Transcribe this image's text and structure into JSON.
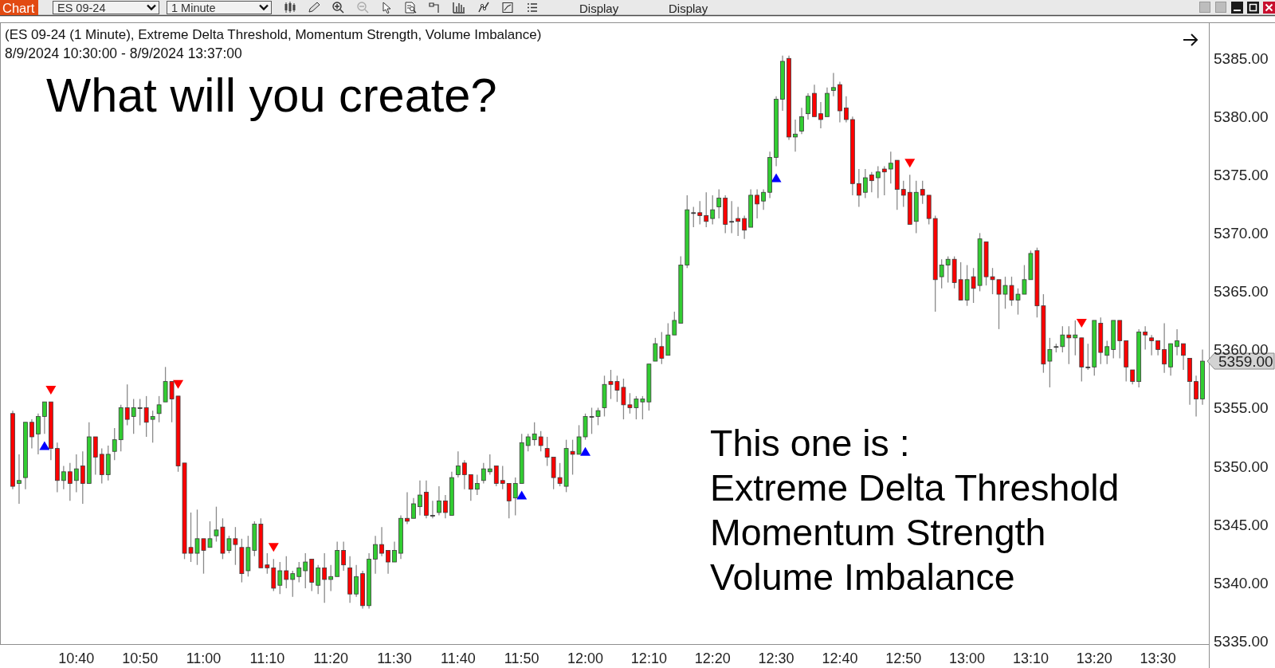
{
  "chart_data": {
    "type": "candlestick",
    "title": "(ES 09-24 (1 Minute), Extreme Delta Threshold, Momentum Strength, Volume Imbalance)",
    "subtitle": "8/9/2024 10:30:00 - 8/9/2024 13:37:00",
    "annotations": [
      "Chart",
      "ES 09-24",
      "1 Minute",
      "Display",
      "Display",
      "What will you create?",
      "This one is :",
      "Extreme Delta Threshold",
      "Momentum Strength",
      "Volume Imbalance",
      {
        "text": "5359.00",
        "x": "2024-08-09T13:37",
        "y": 5359
      }
    ],
    "x": [
      "2024-08-09T10:30",
      "2024-08-09T10:31",
      "2024-08-09T10:32",
      "2024-08-09T10:33",
      "2024-08-09T10:34",
      "2024-08-09T10:35",
      "2024-08-09T10:36",
      "2024-08-09T10:37",
      "2024-08-09T10:38",
      "2024-08-09T10:39",
      "2024-08-09T10:40",
      "2024-08-09T10:41",
      "2024-08-09T10:42",
      "2024-08-09T10:43",
      "2024-08-09T10:44",
      "2024-08-09T10:45",
      "2024-08-09T10:46",
      "2024-08-09T10:47",
      "2024-08-09T10:48",
      "2024-08-09T10:49",
      "2024-08-09T10:50",
      "2024-08-09T10:51",
      "2024-08-09T10:52",
      "2024-08-09T10:53",
      "2024-08-09T10:54",
      "2024-08-09T10:55",
      "2024-08-09T10:56",
      "2024-08-09T10:57",
      "2024-08-09T10:58",
      "2024-08-09T10:59",
      "2024-08-09T11:00",
      "2024-08-09T11:01",
      "2024-08-09T11:02",
      "2024-08-09T11:03",
      "2024-08-09T11:04",
      "2024-08-09T11:05",
      "2024-08-09T11:06",
      "2024-08-09T11:07",
      "2024-08-09T11:08",
      "2024-08-09T11:09",
      "2024-08-09T11:10",
      "2024-08-09T11:11",
      "2024-08-09T11:12",
      "2024-08-09T11:13",
      "2024-08-09T11:14",
      "2024-08-09T11:15",
      "2024-08-09T11:16",
      "2024-08-09T11:17",
      "2024-08-09T11:18",
      "2024-08-09T11:19",
      "2024-08-09T11:20",
      "2024-08-09T11:21",
      "2024-08-09T11:22",
      "2024-08-09T11:23",
      "2024-08-09T11:24",
      "2024-08-09T11:25",
      "2024-08-09T11:26",
      "2024-08-09T11:27",
      "2024-08-09T11:28",
      "2024-08-09T11:29",
      "2024-08-09T11:30",
      "2024-08-09T11:31",
      "2024-08-09T11:32",
      "2024-08-09T11:33",
      "2024-08-09T11:34",
      "2024-08-09T11:35",
      "2024-08-09T11:36",
      "2024-08-09T11:37",
      "2024-08-09T11:38",
      "2024-08-09T11:39",
      "2024-08-09T11:40",
      "2024-08-09T11:41",
      "2024-08-09T11:42",
      "2024-08-09T11:43",
      "2024-08-09T11:44",
      "2024-08-09T11:45",
      "2024-08-09T11:46",
      "2024-08-09T11:47",
      "2024-08-09T11:48",
      "2024-08-09T11:49",
      "2024-08-09T11:50",
      "2024-08-09T11:51",
      "2024-08-09T11:52",
      "2024-08-09T11:53",
      "2024-08-09T11:54",
      "2024-08-09T11:55",
      "2024-08-09T11:56",
      "2024-08-09T11:57",
      "2024-08-09T11:58",
      "2024-08-09T11:59",
      "2024-08-09T12:00",
      "2024-08-09T12:01",
      "2024-08-09T12:02",
      "2024-08-09T12:03",
      "2024-08-09T12:04",
      "2024-08-09T12:05",
      "2024-08-09T12:06",
      "2024-08-09T12:07",
      "2024-08-09T12:08",
      "2024-08-09T12:09",
      "2024-08-09T12:10",
      "2024-08-09T12:11",
      "2024-08-09T12:12",
      "2024-08-09T12:13",
      "2024-08-09T12:14",
      "2024-08-09T12:15",
      "2024-08-09T12:16",
      "2024-08-09T12:17",
      "2024-08-09T12:18",
      "2024-08-09T12:19",
      "2024-08-09T12:20",
      "2024-08-09T12:21",
      "2024-08-09T12:22",
      "2024-08-09T12:23",
      "2024-08-09T12:24",
      "2024-08-09T12:25",
      "2024-08-09T12:26",
      "2024-08-09T12:27",
      "2024-08-09T12:28",
      "2024-08-09T12:29",
      "2024-08-09T12:30",
      "2024-08-09T12:31",
      "2024-08-09T12:32",
      "2024-08-09T12:33",
      "2024-08-09T12:34",
      "2024-08-09T12:35",
      "2024-08-09T12:36",
      "2024-08-09T12:37",
      "2024-08-09T12:38",
      "2024-08-09T12:39",
      "2024-08-09T12:40",
      "2024-08-09T12:41",
      "2024-08-09T12:42",
      "2024-08-09T12:43",
      "2024-08-09T12:44",
      "2024-08-09T12:45",
      "2024-08-09T12:46",
      "2024-08-09T12:47",
      "2024-08-09T12:48",
      "2024-08-09T12:49",
      "2024-08-09T12:50",
      "2024-08-09T12:51",
      "2024-08-09T12:52",
      "2024-08-09T12:53",
      "2024-08-09T12:54",
      "2024-08-09T12:55",
      "2024-08-09T12:56",
      "2024-08-09T12:57",
      "2024-08-09T12:58",
      "2024-08-09T12:59",
      "2024-08-09T13:00",
      "2024-08-09T13:01",
      "2024-08-09T13:02",
      "2024-08-09T13:03",
      "2024-08-09T13:04",
      "2024-08-09T13:05",
      "2024-08-09T13:06",
      "2024-08-09T13:07",
      "2024-08-09T13:08",
      "2024-08-09T13:09",
      "2024-08-09T13:10",
      "2024-08-09T13:11",
      "2024-08-09T13:12",
      "2024-08-09T13:13",
      "2024-08-09T13:14",
      "2024-08-09T13:15",
      "2024-08-09T13:16",
      "2024-08-09T13:17",
      "2024-08-09T13:18",
      "2024-08-09T13:19",
      "2024-08-09T13:20",
      "2024-08-09T13:21",
      "2024-08-09T13:22",
      "2024-08-09T13:23",
      "2024-08-09T13:24",
      "2024-08-09T13:25",
      "2024-08-09T13:26",
      "2024-08-09T13:27",
      "2024-08-09T13:28",
      "2024-08-09T13:29",
      "2024-08-09T13:30",
      "2024-08-09T13:31",
      "2024-08-09T13:32",
      "2024-08-09T13:33",
      "2024-08-09T13:34",
      "2024-08-09T13:35",
      "2024-08-09T13:36",
      "2024-08-09T13:37"
    ],
    "ohlc": [
      [
        5354.5,
        5354.75,
        5348,
        5348.25
      ],
      [
        5348.5,
        5351,
        5346.75,
        5348.75
      ],
      [
        5349,
        5353.75,
        5348,
        5353.75
      ],
      [
        5353.75,
        5354,
        5351.5,
        5352.5
      ],
      [
        5352.75,
        5354.5,
        5351,
        5354.25
      ],
      [
        5354.25,
        5355.5,
        5352.75,
        5355.5
      ],
      [
        5355.5,
        5355.5,
        5350.5,
        5351.5
      ],
      [
        5351.5,
        5352,
        5347.75,
        5348.75
      ],
      [
        5348.75,
        5350,
        5348,
        5349.5
      ],
      [
        5349.5,
        5350.25,
        5347,
        5348.5
      ],
      [
        5348.75,
        5351,
        5347.75,
        5349.75
      ],
      [
        5350,
        5351.25,
        5346.75,
        5348.5
      ],
      [
        5348.5,
        5353.75,
        5348.5,
        5352.5
      ],
      [
        5352.5,
        5352.5,
        5349.25,
        5350.75
      ],
      [
        5351,
        5351.5,
        5348.5,
        5349.25
      ],
      [
        5349.25,
        5351.75,
        5348.75,
        5351
      ],
      [
        5351.25,
        5353.25,
        5350.5,
        5352.25
      ],
      [
        5352.25,
        5355.25,
        5351.25,
        5355
      ],
      [
        5355,
        5357,
        5353.5,
        5354
      ],
      [
        5354.25,
        5355.75,
        5352.75,
        5355
      ],
      [
        5355,
        5355.75,
        5353.5,
        5355
      ],
      [
        5355,
        5356,
        5352.5,
        5353.75
      ],
      [
        5354,
        5354.75,
        5352,
        5354.25
      ],
      [
        5354.5,
        5356,
        5353.75,
        5355.25
      ],
      [
        5355.5,
        5358.5,
        5355.5,
        5357.25
      ],
      [
        5357.25,
        5357.25,
        5353.75,
        5355.75
      ],
      [
        5356,
        5356,
        5349.5,
        5350
      ],
      [
        5350.25,
        5350.25,
        5342,
        5342.5
      ],
      [
        5343,
        5346,
        5341.75,
        5342.5
      ],
      [
        5342.5,
        5346.25,
        5341.5,
        5343.75
      ],
      [
        5343.75,
        5343.75,
        5340.75,
        5342.75
      ],
      [
        5343,
        5345.25,
        5343,
        5343.75
      ],
      [
        5344,
        5346.5,
        5343.5,
        5344.5
      ],
      [
        5344.75,
        5345.5,
        5342,
        5342.5
      ],
      [
        5342.75,
        5344,
        5342.5,
        5343.75
      ],
      [
        5343.75,
        5344.75,
        5341.5,
        5343.25
      ],
      [
        5343,
        5343.75,
        5340,
        5340.75
      ],
      [
        5341,
        5344,
        5340.5,
        5343
      ],
      [
        5342.75,
        5345.25,
        5342.25,
        5345
      ],
      [
        5345,
        5345.5,
        5341.25,
        5341.25
      ],
      [
        5341.5,
        5342.5,
        5340.75,
        5341.25
      ],
      [
        5341.25,
        5342,
        5339.25,
        5339.5
      ],
      [
        5339.75,
        5341.75,
        5339,
        5341
      ],
      [
        5341,
        5342.25,
        5339.5,
        5340.25
      ],
      [
        5340.25,
        5341,
        5338.75,
        5340.75
      ],
      [
        5340.5,
        5341.75,
        5340,
        5341.25
      ],
      [
        5341,
        5342.5,
        5339.5,
        5341.75
      ],
      [
        5342,
        5342,
        5339.25,
        5340
      ],
      [
        5339.75,
        5341.5,
        5339,
        5341.25
      ],
      [
        5341.25,
        5342.5,
        5338.25,
        5340.25
      ],
      [
        5340.25,
        5341.5,
        5339.25,
        5340.5
      ],
      [
        5340.5,
        5343.5,
        5340.5,
        5342.75
      ],
      [
        5342.75,
        5343.5,
        5341,
        5341.5
      ],
      [
        5341.25,
        5342.25,
        5338.25,
        5339
      ],
      [
        5339,
        5341.5,
        5338.75,
        5340.5
      ],
      [
        5340.75,
        5341,
        5337.75,
        5338
      ],
      [
        5338,
        5342.5,
        5337.75,
        5342
      ],
      [
        5342,
        5344,
        5340.75,
        5343.25
      ],
      [
        5343.25,
        5344.75,
        5342.25,
        5342.5
      ],
      [
        5342.75,
        5342.75,
        5340.75,
        5341.75
      ],
      [
        5341.75,
        5343.5,
        5341.75,
        5342.75
      ],
      [
        5342.5,
        5345.75,
        5342,
        5345.5
      ],
      [
        5345.5,
        5347.75,
        5345,
        5345.25
      ],
      [
        5345.5,
        5347.25,
        5345.5,
        5346.75
      ],
      [
        5346.5,
        5348.75,
        5345.75,
        5347.5
      ],
      [
        5347.75,
        5348.75,
        5345.5,
        5345.75
      ],
      [
        5345.75,
        5347,
        5345.5,
        5345.75
      ],
      [
        5346,
        5348.25,
        5345.75,
        5347
      ],
      [
        5347,
        5347.5,
        5345.5,
        5346
      ],
      [
        5345.75,
        5349.5,
        5345.75,
        5349
      ],
      [
        5349.25,
        5351.25,
        5349,
        5350
      ],
      [
        5350.25,
        5350.5,
        5348,
        5349.25
      ],
      [
        5349.25,
        5349.25,
        5347,
        5348
      ],
      [
        5348,
        5349.25,
        5347.5,
        5348.5
      ],
      [
        5348.75,
        5350.25,
        5348.5,
        5349.75
      ],
      [
        5349.5,
        5351,
        5349.25,
        5349.75
      ],
      [
        5350,
        5350,
        5348.25,
        5348.5
      ],
      [
        5348.75,
        5350,
        5348,
        5348.5
      ],
      [
        5348.5,
        5348.5,
        5345.5,
        5347
      ],
      [
        5347.25,
        5349,
        5345.75,
        5348.5
      ],
      [
        5348.5,
        5352.75,
        5348.5,
        5352
      ],
      [
        5351.75,
        5352.75,
        5351.25,
        5352.5
      ],
      [
        5352.25,
        5353.75,
        5351.75,
        5352.75
      ],
      [
        5352.5,
        5353,
        5351.25,
        5351.75
      ],
      [
        5351.5,
        5352.5,
        5350,
        5350.75
      ],
      [
        5350.75,
        5350.75,
        5348,
        5349
      ],
      [
        5349,
        5350.25,
        5348.25,
        5348.5
      ],
      [
        5348.25,
        5352.25,
        5347.75,
        5351.5
      ],
      [
        5351.25,
        5352.25,
        5349.25,
        5351
      ],
      [
        5351,
        5353.5,
        5351,
        5352.5
      ],
      [
        5352.5,
        5354.5,
        5352.25,
        5354.25
      ],
      [
        5354.25,
        5355,
        5352.75,
        5354.25
      ],
      [
        5354.25,
        5355,
        5353.5,
        5354.75
      ],
      [
        5355,
        5357.75,
        5354.25,
        5357
      ],
      [
        5357.25,
        5358.25,
        5355.75,
        5357
      ],
      [
        5357.25,
        5357.75,
        5355.5,
        5356.5
      ],
      [
        5356.75,
        5357.5,
        5354,
        5355.25
      ],
      [
        5355.25,
        5356.25,
        5354.5,
        5355
      ],
      [
        5355,
        5356,
        5354,
        5355.75
      ],
      [
        5355.5,
        5356,
        5354,
        5355.75
      ],
      [
        5355.5,
        5358.75,
        5354.75,
        5358.75
      ],
      [
        5359,
        5361,
        5359,
        5360.5
      ],
      [
        5360.25,
        5361.5,
        5358.75,
        5359.25
      ],
      [
        5359.5,
        5362.25,
        5359.5,
        5361.25
      ],
      [
        5361.25,
        5363.25,
        5361.25,
        5362.5
      ],
      [
        5362.25,
        5368,
        5362.25,
        5367.25
      ],
      [
        5367.25,
        5373.25,
        5367,
        5372
      ],
      [
        5371.75,
        5372.25,
        5370.5,
        5371.75
      ],
      [
        5371.75,
        5372.75,
        5370.75,
        5371.5
      ],
      [
        5371.5,
        5373.5,
        5370.5,
        5371
      ],
      [
        5371.25,
        5373.25,
        5370.75,
        5372
      ],
      [
        5372.25,
        5373.75,
        5371.25,
        5373
      ],
      [
        5373,
        5373.25,
        5370,
        5370.75
      ],
      [
        5371,
        5372.75,
        5370,
        5371
      ],
      [
        5371.25,
        5372.25,
        5369.75,
        5371
      ],
      [
        5371.25,
        5371.5,
        5369.5,
        5370.25
      ],
      [
        5370.5,
        5373.75,
        5370.5,
        5373.25
      ],
      [
        5373.25,
        5373.75,
        5371.25,
        5372.5
      ],
      [
        5372.75,
        5373.75,
        5372,
        5373.5
      ],
      [
        5373.5,
        5377,
        5373,
        5376.5
      ],
      [
        5376.5,
        5381.75,
        5375.75,
        5381.5
      ],
      [
        5381.5,
        5385.25,
        5380.5,
        5384.75
      ],
      [
        5385,
        5385.25,
        5378,
        5378.25
      ],
      [
        5378.25,
        5379.75,
        5377,
        5378.5
      ],
      [
        5378.75,
        5380.75,
        5378.5,
        5380
      ],
      [
        5380.25,
        5382,
        5379.75,
        5381.75
      ],
      [
        5382,
        5382.75,
        5380,
        5380
      ],
      [
        5380.25,
        5381.25,
        5379,
        5379.75
      ],
      [
        5380,
        5382.5,
        5380,
        5382
      ],
      [
        5382.25,
        5383.75,
        5381.75,
        5382.5
      ],
      [
        5382.75,
        5383,
        5379.5,
        5380.5
      ],
      [
        5380.75,
        5381.75,
        5379.5,
        5379.75
      ],
      [
        5379.75,
        5380,
        5373.25,
        5374.25
      ],
      [
        5374.25,
        5375.5,
        5372.25,
        5373.25
      ],
      [
        5373.5,
        5375.5,
        5373,
        5374.75
      ],
      [
        5375,
        5375.25,
        5373.5,
        5374.5
      ],
      [
        5374.75,
        5375.75,
        5373,
        5375.25
      ],
      [
        5375.5,
        5375.75,
        5373.25,
        5375.25
      ],
      [
        5375.5,
        5377,
        5374.25,
        5376
      ],
      [
        5376.25,
        5376.25,
        5372,
        5373.75
      ],
      [
        5373.75,
        5374.5,
        5372.25,
        5373.25
      ],
      [
        5373.5,
        5375,
        5370.75,
        5370.75
      ],
      [
        5371,
        5374.5,
        5370,
        5373.5
      ],
      [
        5373.75,
        5374.5,
        5372.5,
        5373.25
      ],
      [
        5373.25,
        5373.25,
        5370.75,
        5371.25
      ],
      [
        5371.25,
        5371.5,
        5363.25,
        5366
      ],
      [
        5366.25,
        5367.75,
        5365.25,
        5367.25
      ],
      [
        5367.25,
        5368,
        5365.75,
        5367.75
      ],
      [
        5367.75,
        5368,
        5365.25,
        5365.75
      ],
      [
        5366,
        5367.5,
        5364.25,
        5364.25
      ],
      [
        5364.25,
        5367.25,
        5363.75,
        5366
      ],
      [
        5366.25,
        5367,
        5364,
        5365.25
      ],
      [
        5365.5,
        5370,
        5365,
        5369.5
      ],
      [
        5369.25,
        5369.25,
        5365.5,
        5366.25
      ],
      [
        5366.25,
        5367,
        5364.75,
        5366
      ],
      [
        5366,
        5366,
        5361.75,
        5364.75
      ],
      [
        5364.75,
        5366.25,
        5363.5,
        5365.5
      ],
      [
        5365.5,
        5366.25,
        5363.75,
        5364.25
      ],
      [
        5364.25,
        5365.25,
        5363,
        5364.75
      ],
      [
        5364.75,
        5367.25,
        5364.75,
        5366
      ],
      [
        5366,
        5368.5,
        5366,
        5368.25
      ],
      [
        5368.5,
        5368.75,
        5362.75,
        5363.75
      ],
      [
        5363.75,
        5364.75,
        5358,
        5358.75
      ],
      [
        5359,
        5361,
        5356.75,
        5360
      ],
      [
        5360.25,
        5360.5,
        5359.75,
        5360.25
      ],
      [
        5360.25,
        5362,
        5359.75,
        5361.25
      ],
      [
        5361.25,
        5362,
        5358.75,
        5361
      ],
      [
        5361,
        5362.5,
        5359.5,
        5361.25
      ],
      [
        5361,
        5361,
        5357.25,
        5358.5
      ],
      [
        5358.5,
        5360.5,
        5358.25,
        5358.5
      ],
      [
        5358.5,
        5362.5,
        5357.75,
        5362.5
      ],
      [
        5362.25,
        5362.75,
        5358.75,
        5359.75
      ],
      [
        5359.5,
        5360.75,
        5358.75,
        5360.25
      ],
      [
        5360,
        5362.5,
        5359.25,
        5362.5
      ],
      [
        5362.5,
        5362.5,
        5359.25,
        5360.75
      ],
      [
        5360.75,
        5360.75,
        5357.25,
        5358.5
      ],
      [
        5358.25,
        5358.25,
        5357,
        5357.25
      ],
      [
        5357.25,
        5361.75,
        5356.75,
        5361.5
      ],
      [
        5361.5,
        5362,
        5360,
        5361.25
      ],
      [
        5361,
        5361.25,
        5359.5,
        5360.75
      ],
      [
        5360.75,
        5360.75,
        5359.5,
        5360
      ],
      [
        5360,
        5362.25,
        5358,
        5358.75
      ],
      [
        5358.5,
        5360.5,
        5357.75,
        5360.5
      ],
      [
        5360.25,
        5361.75,
        5359.5,
        5360.75
      ],
      [
        5360.5,
        5360.5,
        5358.25,
        5359.5
      ],
      [
        5359.25,
        5359.25,
        5355.25,
        5357.25
      ],
      [
        5357.25,
        5357.75,
        5354.25,
        5355.75
      ],
      [
        5355.75,
        5360,
        5355.25,
        5359
      ]
    ],
    "colors": [
      "#ff0000",
      "#32cd32",
      "#32cd32",
      "#ff0000",
      "#32cd32",
      "#32cd32",
      "#ff0000",
      "#ff0000",
      "#32cd32",
      "#ff0000",
      "#32cd32",
      "#ff0000",
      "#32cd32",
      "#ff0000",
      "#ff0000",
      "#32cd32",
      "#32cd32",
      "#32cd32",
      "#ff0000",
      "#32cd32",
      "#3c3c3c",
      "#ff0000",
      "#32cd32",
      "#32cd32",
      "#32cd32",
      "#ff0000",
      "#ff0000",
      "#ff0000",
      "#ff0000",
      "#32cd32",
      "#ff0000",
      "#32cd32",
      "#32cd32",
      "#ff0000",
      "#32cd32",
      "#ff0000",
      "#ff0000",
      "#32cd32",
      "#32cd32",
      "#ff0000",
      "#ff0000",
      "#ff0000",
      "#32cd32",
      "#ff0000",
      "#32cd32",
      "#32cd32",
      "#32cd32",
      "#ff0000",
      "#32cd32",
      "#ff0000",
      "#32cd32",
      "#32cd32",
      "#ff0000",
      "#ff0000",
      "#32cd32",
      "#ff0000",
      "#32cd32",
      "#32cd32",
      "#ff0000",
      "#ff0000",
      "#32cd32",
      "#32cd32",
      "#ff0000",
      "#32cd32",
      "#32cd32",
      "#ff0000",
      "#3c3c3c",
      "#32cd32",
      "#ff0000",
      "#32cd32",
      "#32cd32",
      "#ff0000",
      "#ff0000",
      "#32cd32",
      "#32cd32",
      "#32cd32",
      "#ff0000",
      "#ff0000",
      "#ff0000",
      "#32cd32",
      "#32cd32",
      "#32cd32",
      "#32cd32",
      "#ff0000",
      "#ff0000",
      "#ff0000",
      "#ff0000",
      "#32cd32",
      "#ff0000",
      "#32cd32",
      "#32cd32",
      "#3c3c3c",
      "#32cd32",
      "#32cd32",
      "#ff0000",
      "#ff0000",
      "#ff0000",
      "#ff0000",
      "#32cd32",
      "#32cd32",
      "#32cd32",
      "#32cd32",
      "#ff0000",
      "#32cd32",
      "#32cd32",
      "#32cd32",
      "#32cd32",
      "#3c3c3c",
      "#ff0000",
      "#ff0000",
      "#32cd32",
      "#32cd32",
      "#ff0000",
      "#3c3c3c",
      "#ff0000",
      "#ff0000",
      "#32cd32",
      "#ff0000",
      "#32cd32",
      "#32cd32",
      "#32cd32",
      "#32cd32",
      "#ff0000",
      "#32cd32",
      "#32cd32",
      "#32cd32",
      "#ff0000",
      "#ff0000",
      "#32cd32",
      "#32cd32",
      "#ff0000",
      "#ff0000",
      "#ff0000",
      "#ff0000",
      "#32cd32",
      "#ff0000",
      "#32cd32",
      "#ff0000",
      "#32cd32",
      "#ff0000",
      "#ff0000",
      "#ff0000",
      "#32cd32",
      "#ff0000",
      "#ff0000",
      "#ff0000",
      "#32cd32",
      "#32cd32",
      "#ff0000",
      "#ff0000",
      "#32cd32",
      "#ff0000",
      "#32cd32",
      "#ff0000",
      "#ff0000",
      "#ff0000",
      "#32cd32",
      "#ff0000",
      "#32cd32",
      "#32cd32",
      "#32cd32",
      "#ff0000",
      "#ff0000",
      "#32cd32",
      "#3c3c3c",
      "#32cd32",
      "#ff0000",
      "#32cd32",
      "#ff0000",
      "#3c3c3c",
      "#32cd32",
      "#ff0000",
      "#32cd32",
      "#32cd32",
      "#ff0000",
      "#ff0000",
      "#ff0000",
      "#32cd32",
      "#ff0000",
      "#ff0000",
      "#ff0000",
      "#ff0000",
      "#32cd32",
      "#32cd32",
      "#ff0000",
      "#ff0000",
      "#ff0000",
      "#32cd32"
    ],
    "series": [
      {
        "type": "scatter",
        "color": "#0000ff",
        "marker": "triangle",
        "x": [
          "2024-08-09T10:35",
          "2024-08-09T11:50",
          "2024-08-09T12:00",
          "2024-08-09T12:30"
        ],
        "values": [
          5351.75,
          5347.5,
          5351.25,
          5374.75
        ]
      },
      {
        "type": "scatter",
        "color": "#ff0000",
        "marker": "triangle",
        "x": [
          "2024-08-09T10:36",
          "2024-08-09T10:56",
          "2024-08-09T11:11",
          "2024-08-09T12:51",
          "2024-08-09T13:18"
        ],
        "values": [
          5356.5,
          5357,
          5343,
          5376,
          5362.25
        ]
      }
    ],
    "xlim": [
      "2024-08-09T10:28",
      "2024-08-09T13:38"
    ],
    "xticks": [
      {
        "value": "2024-08-09T10:40",
        "label": "10:40"
      },
      {
        "value": "2024-08-09T10:50",
        "label": "10:50"
      },
      {
        "value": "2024-08-09T11:00",
        "label": "11:00"
      },
      {
        "value": "2024-08-09T11:10",
        "label": "11:10"
      },
      {
        "value": "2024-08-09T11:20",
        "label": "11:20"
      },
      {
        "value": "2024-08-09T11:30",
        "label": "11:30"
      },
      {
        "value": "2024-08-09T11:40",
        "label": "11:40"
      },
      {
        "value": "2024-08-09T11:50",
        "label": "11:50"
      },
      {
        "value": "2024-08-09T12:00",
        "label": "12:00"
      },
      {
        "value": "2024-08-09T12:10",
        "label": "12:10"
      },
      {
        "value": "2024-08-09T12:20",
        "label": "12:20"
      },
      {
        "value": "2024-08-09T12:30",
        "label": "12:30"
      },
      {
        "value": "2024-08-09T12:40",
        "label": "12:40"
      },
      {
        "value": "2024-08-09T12:50",
        "label": "12:50"
      },
      {
        "value": "2024-08-09T13:00",
        "label": "13:00"
      },
      {
        "value": "2024-08-09T13:10",
        "label": "13:10"
      },
      {
        "value": "2024-08-09T13:20",
        "label": "13:20"
      },
      {
        "value": "2024-08-09T13:30",
        "label": "13:30"
      }
    ],
    "ylim": [
      5334.7,
      5388.1
    ],
    "yticks": [
      {
        "value": 5335,
        "label": "5335.00"
      },
      {
        "value": 5340,
        "label": "5340.00"
      },
      {
        "value": 5345,
        "label": "5345.00"
      },
      {
        "value": 5350,
        "label": "5350.00"
      },
      {
        "value": 5355,
        "label": "5355.00"
      },
      {
        "value": 5360,
        "label": "5360.00"
      },
      {
        "value": 5365,
        "label": "5365.00"
      },
      {
        "value": 5370,
        "label": "5370.00"
      },
      {
        "value": 5375,
        "label": "5375.00"
      },
      {
        "value": 5380,
        "label": "5380.00"
      },
      {
        "value": 5385,
        "label": "5385.00"
      }
    ]
  }
}
